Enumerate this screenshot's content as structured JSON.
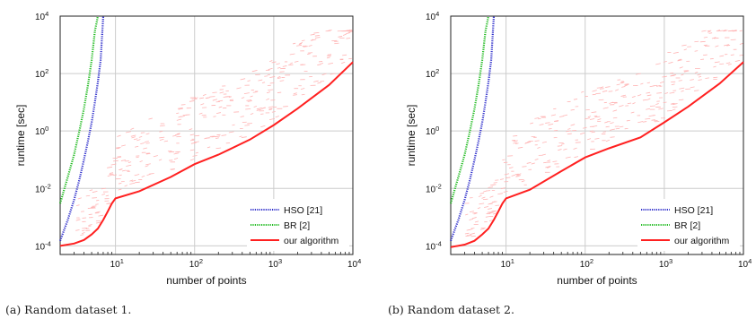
{
  "chart_data": [
    {
      "type": "line",
      "caption": "(a) Random dataset 1.",
      "xlabel": "number of points",
      "ylabel": "runtime [sec]",
      "xscale": "log",
      "yscale": "log",
      "xlim": [
        2,
        10000
      ],
      "ylim": [
        5e-05,
        10000
      ],
      "x_ticks": [
        "10^1",
        "10^2",
        "10^3",
        "10^4"
      ],
      "y_ticks": [
        "10^-4",
        "10^-2",
        "10^0",
        "10^2",
        "10^4"
      ],
      "grid": true,
      "legend_position": "bottom-right",
      "series": [
        {
          "name": "HSO [21]",
          "color": "#3333cc",
          "style": "dotted",
          "x": [
            2,
            2.5,
            3,
            3.5,
            4,
            4.5,
            5,
            5.5,
            6,
            6.5,
            7
          ],
          "y": [
            0.00015,
            0.0008,
            0.004,
            0.02,
            0.1,
            0.45,
            2,
            10,
            50,
            300,
            10000
          ]
        },
        {
          "name": "BR [2]",
          "color": "#22bb22",
          "style": "dotted",
          "x": [
            2,
            2.5,
            3,
            3.5,
            4,
            4.5,
            5,
            5.5,
            6
          ],
          "y": [
            0.003,
            0.025,
            0.15,
            1,
            6,
            40,
            300,
            3000,
            10000
          ]
        },
        {
          "name": "our algorithm",
          "color": "#ff2020",
          "style": "solid",
          "x": [
            2,
            3,
            4,
            5,
            6,
            7,
            8,
            9,
            10,
            20,
            50,
            100,
            200,
            500,
            1000,
            2000,
            5000,
            10000
          ],
          "y": [
            0.0001,
            0.00012,
            0.00016,
            0.00025,
            0.0004,
            0.0008,
            0.0016,
            0.003,
            0.0045,
            0.008,
            0.025,
            0.07,
            0.15,
            0.5,
            1.6,
            6,
            40,
            250
          ]
        }
      ]
    },
    {
      "type": "line",
      "caption": "(b) Random dataset 2.",
      "xlabel": "number of points",
      "ylabel": "runtime [sec]",
      "xscale": "log",
      "yscale": "log",
      "xlim": [
        2,
        10000
      ],
      "ylim": [
        5e-05,
        10000
      ],
      "x_ticks": [
        "10^1",
        "10^2",
        "10^3",
        "10^4"
      ],
      "y_ticks": [
        "10^-4",
        "10^-2",
        "10^0",
        "10^2",
        "10^4"
      ],
      "grid": true,
      "legend_position": "bottom-right",
      "series": [
        {
          "name": "HSO [21]",
          "color": "#3333cc",
          "style": "dotted",
          "x": [
            2,
            2.5,
            3,
            3.5,
            4,
            4.5,
            5,
            5.5,
            6,
            6.5,
            7
          ],
          "y": [
            0.00015,
            0.0008,
            0.004,
            0.02,
            0.1,
            0.45,
            2,
            10,
            50,
            300,
            10000
          ]
        },
        {
          "name": "BR [2]",
          "color": "#22bb22",
          "style": "dotted",
          "x": [
            2,
            2.5,
            3,
            3.5,
            4,
            4.5,
            5,
            5.5,
            6
          ],
          "y": [
            0.003,
            0.025,
            0.15,
            1,
            6,
            40,
            300,
            3000,
            10000
          ]
        },
        {
          "name": "our algorithm",
          "color": "#ff2020",
          "style": "solid",
          "x": [
            2,
            3,
            4,
            5,
            6,
            7,
            8,
            9,
            10,
            20,
            50,
            100,
            200,
            500,
            1000,
            2000,
            5000,
            10000
          ],
          "y": [
            9e-05,
            0.00011,
            0.00015,
            0.00025,
            0.0004,
            0.0008,
            0.0016,
            0.003,
            0.0045,
            0.009,
            0.04,
            0.12,
            0.25,
            0.6,
            2.0,
            7,
            45,
            250
          ]
        }
      ]
    }
  ]
}
